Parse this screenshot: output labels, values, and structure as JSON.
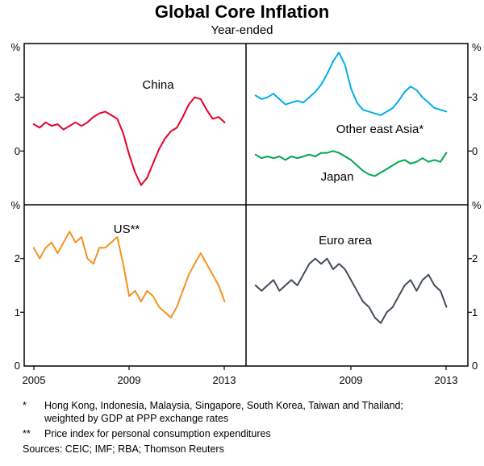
{
  "title": "Global Core Inflation",
  "subtitle": "Year-ended",
  "axes": {
    "x": {
      "min": 2004.6,
      "max": 2013.9,
      "labels_left": [
        "2005",
        "2009",
        "2013"
      ],
      "labels_right": [
        "2009",
        "2013"
      ]
    },
    "top_row": {
      "min": -3,
      "max": 6,
      "unit": "%",
      "tick_labels": [
        "3",
        "0"
      ]
    },
    "bottom_row": {
      "min": 0,
      "max": 3,
      "unit": "%",
      "tick_labels": [
        "2",
        "1",
        "0"
      ]
    }
  },
  "chart_data": {
    "type": "line",
    "title": "Global Core Inflation",
    "subtitle": "Year-ended",
    "layout": "2x2 panels, shared x-axis 2005-2013, top row ylim -3..6 %, bottom row ylim 0..3 %",
    "x_unit": "year (quarterly observations)",
    "x_range": [
      2004.6,
      2013.9
    ],
    "top_row_ylim": [
      -3,
      6
    ],
    "bottom_row_ylim": [
      0,
      3
    ],
    "series": [
      {
        "id": "china",
        "label": "China",
        "col": "left",
        "row": "top",
        "color": "#e60028",
        "x_start": 2005.0,
        "x_step": 0.25,
        "values": [
          1.5,
          1.3,
          1.6,
          1.4,
          1.5,
          1.2,
          1.4,
          1.6,
          1.4,
          1.6,
          1.9,
          2.1,
          2.2,
          2.0,
          1.8,
          1.0,
          -0.2,
          -1.2,
          -1.9,
          -1.5,
          -0.7,
          0.1,
          0.7,
          1.1,
          1.3,
          1.9,
          2.6,
          3.0,
          2.9,
          2.3,
          1.8,
          1.9,
          1.6
        ]
      },
      {
        "id": "other-east-asia",
        "label": "Other east Asia*",
        "col": "right",
        "row": "top",
        "color": "#00aeef",
        "x_start": 2005.0,
        "x_step": 0.25,
        "values": [
          3.1,
          2.9,
          3.0,
          3.2,
          2.9,
          2.6,
          2.7,
          2.8,
          2.7,
          3.0,
          3.3,
          3.7,
          4.3,
          5.0,
          5.5,
          4.8,
          3.5,
          2.7,
          2.3,
          2.2,
          2.1,
          2.0,
          2.2,
          2.4,
          2.8,
          3.3,
          3.6,
          3.4,
          3.0,
          2.7,
          2.4,
          2.3,
          2.2
        ]
      },
      {
        "id": "japan",
        "label": "Japan",
        "col": "right",
        "row": "top",
        "color": "#00a651",
        "x_start": 2005.0,
        "x_step": 0.25,
        "values": [
          -0.2,
          -0.4,
          -0.3,
          -0.4,
          -0.3,
          -0.5,
          -0.3,
          -0.4,
          -0.3,
          -0.2,
          -0.3,
          -0.1,
          -0.1,
          0.0,
          -0.1,
          -0.3,
          -0.5,
          -0.8,
          -1.1,
          -1.3,
          -1.4,
          -1.2,
          -1.0,
          -0.8,
          -0.6,
          -0.5,
          -0.7,
          -0.6,
          -0.4,
          -0.6,
          -0.5,
          -0.6,
          -0.1
        ]
      },
      {
        "id": "us",
        "label": "US**",
        "col": "left",
        "row": "bottom",
        "color": "#f6911e",
        "x_start": 2005.0,
        "x_step": 0.25,
        "values": [
          2.2,
          2.0,
          2.2,
          2.3,
          2.1,
          2.3,
          2.5,
          2.3,
          2.4,
          2.0,
          1.9,
          2.2,
          2.2,
          2.3,
          2.4,
          1.9,
          1.3,
          1.4,
          1.2,
          1.4,
          1.3,
          1.1,
          1.0,
          0.9,
          1.1,
          1.4,
          1.7,
          1.9,
          2.1,
          1.9,
          1.7,
          1.5,
          1.2
        ]
      },
      {
        "id": "euro-area",
        "label": "Euro area",
        "col": "right",
        "row": "bottom",
        "color": "#414c5a",
        "x_start": 2005.0,
        "x_step": 0.25,
        "values": [
          1.5,
          1.4,
          1.5,
          1.6,
          1.4,
          1.5,
          1.6,
          1.5,
          1.7,
          1.9,
          2.0,
          1.9,
          2.0,
          1.8,
          1.9,
          1.8,
          1.6,
          1.4,
          1.2,
          1.1,
          0.9,
          0.8,
          1.0,
          1.1,
          1.3,
          1.5,
          1.6,
          1.4,
          1.6,
          1.7,
          1.5,
          1.4,
          1.1
        ]
      }
    ]
  },
  "footnotes": [
    {
      "marker": "*",
      "text": "Hong Kong, Indonesia, Malaysia, Singapore, South Korea, Taiwan and Thailand; weighted by GDP at PPP exchange rates"
    },
    {
      "marker": "**",
      "text": "Price index for personal consumption expenditures"
    }
  ],
  "sources": "Sources: CEIC; IMF; RBA; Thomson Reuters"
}
